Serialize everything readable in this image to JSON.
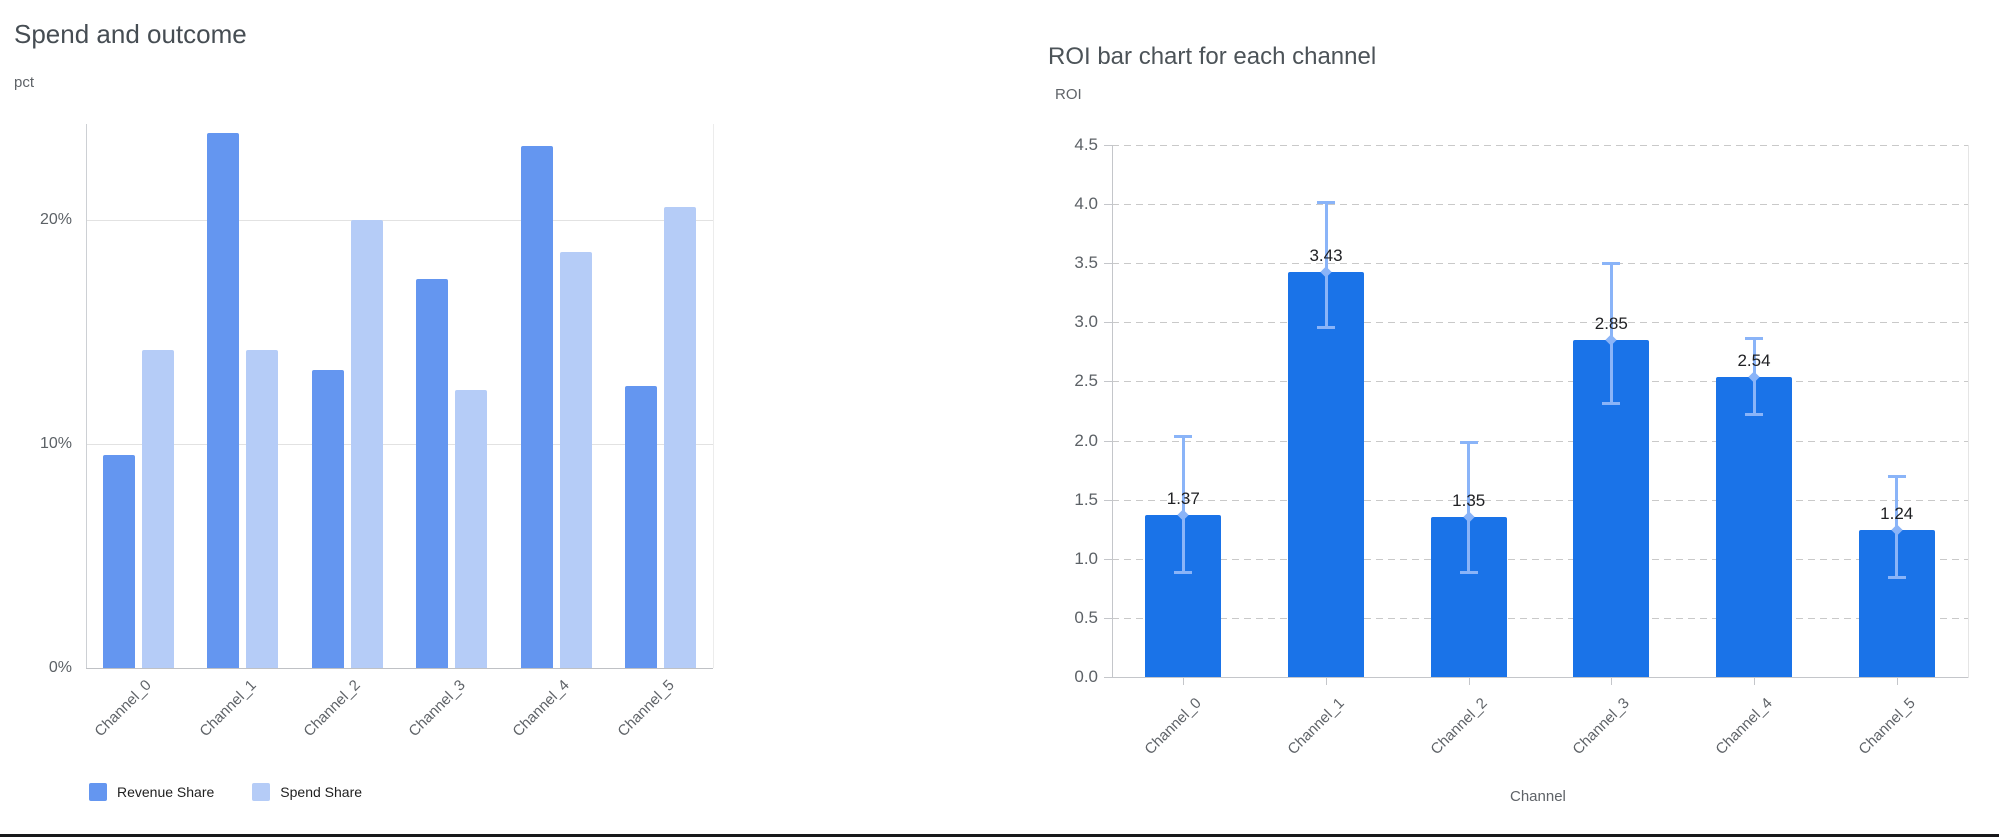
{
  "page": {
    "background": "#ffffff",
    "bottom_divider_color": "#17181a"
  },
  "chart_data": [
    {
      "type": "bar",
      "title": "Spend and outcome",
      "ylabel": "pct",
      "xlabel": "",
      "categories": [
        "Channel_0",
        "Channel_1",
        "Channel_2",
        "Channel_3",
        "Channel_4",
        "Channel_5"
      ],
      "series": [
        {
          "name": "Revenue Share",
          "color": "#6496f0",
          "values": [
            9.5,
            23.9,
            13.3,
            17.4,
            23.3,
            12.6
          ]
        },
        {
          "name": "Spend Share",
          "color": "#b5ccf7",
          "values": [
            14.2,
            14.2,
            20.0,
            12.4,
            18.6,
            20.6
          ]
        }
      ],
      "value_unit": "%",
      "y_ticks": [
        {
          "value": 0,
          "label": "0%"
        },
        {
          "value": 10,
          "label": "10%"
        },
        {
          "value": 20,
          "label": "20%"
        }
      ],
      "ylim": [
        0,
        24.3
      ],
      "grid": "solid",
      "legend_position": "bottom",
      "x_labels_rotated": true
    },
    {
      "type": "bar",
      "title": "ROI bar chart for each channel",
      "ylabel": "ROI",
      "xlabel": "Channel",
      "categories": [
        "Channel_0",
        "Channel_1",
        "Channel_2",
        "Channel_3",
        "Channel_4",
        "Channel_5"
      ],
      "values": [
        1.37,
        3.43,
        1.35,
        2.85,
        2.54,
        1.24
      ],
      "bar_labels": [
        "1.37",
        "3.43",
        "1.35",
        "2.85",
        "2.54",
        "1.24"
      ],
      "error_low": [
        0.88,
        2.95,
        0.88,
        2.31,
        2.22,
        0.84
      ],
      "error_high": [
        2.04,
        4.02,
        1.99,
        3.5,
        2.87,
        1.7
      ],
      "bar_color": "#1a73e8",
      "error_color": "#8ab4f8",
      "y_ticks": [
        {
          "value": 0.0,
          "label": "0.0"
        },
        {
          "value": 0.5,
          "label": "0.5"
        },
        {
          "value": 1.0,
          "label": "1.0"
        },
        {
          "value": 1.5,
          "label": "1.5"
        },
        {
          "value": 2.0,
          "label": "2.0"
        },
        {
          "value": 2.5,
          "label": "2.5"
        },
        {
          "value": 3.0,
          "label": "3.0"
        },
        {
          "value": 3.5,
          "label": "3.5"
        },
        {
          "value": 4.0,
          "label": "4.0"
        },
        {
          "value": 4.5,
          "label": "4.5"
        }
      ],
      "ylim": [
        0,
        4.5
      ],
      "grid": "dashed",
      "legend_position": "none",
      "x_labels_rotated": true
    }
  ]
}
